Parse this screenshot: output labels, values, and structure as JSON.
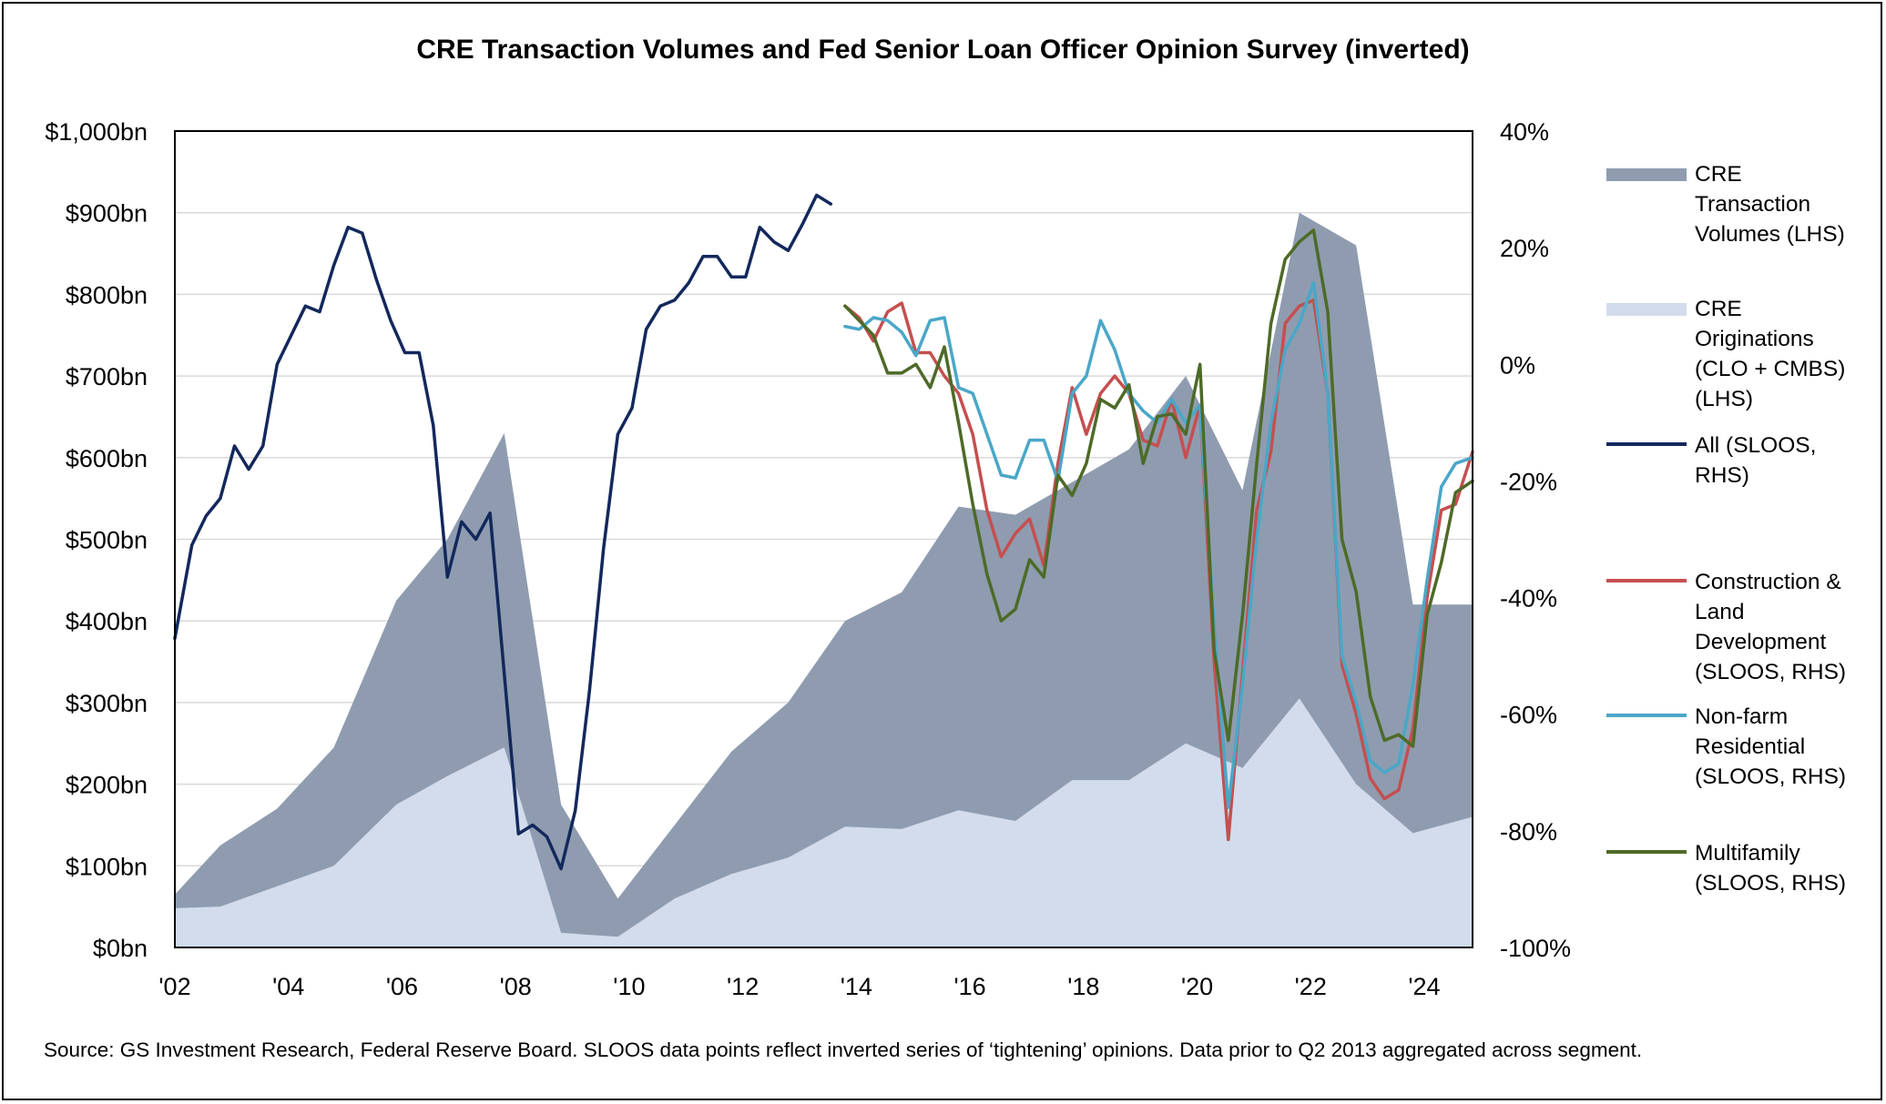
{
  "chart_data": {
    "type": "area+line",
    "title": "CRE Transaction Volumes and Fed Senior Loan Officer Opinion Survey (inverted)",
    "x_ticks": [
      "'02",
      "'04",
      "'06",
      "'08",
      "'10",
      "'12",
      "'14",
      "'16",
      "'18",
      "'20",
      "'22",
      "'24"
    ],
    "x_tick_years": [
      2002,
      2004,
      2006,
      2008,
      2010,
      2012,
      2014,
      2016,
      2018,
      2020,
      2022,
      2024
    ],
    "x_range": [
      2002,
      2024.85
    ],
    "y_left": {
      "range": [
        0,
        1000
      ],
      "ticks": [
        "$0bn",
        "$100bn",
        "$200bn",
        "$300bn",
        "$400bn",
        "$500bn",
        "$600bn",
        "$700bn",
        "$800bn",
        "$900bn",
        "$1,000bn"
      ],
      "tick_values": [
        0,
        100,
        200,
        300,
        400,
        500,
        600,
        700,
        800,
        900,
        1000
      ]
    },
    "y_right": {
      "range": [
        -100,
        40
      ],
      "ticks": [
        "-100%",
        "-80%",
        "-60%",
        "-40%",
        "-20%",
        "0%",
        "20%",
        "40%"
      ],
      "tick_values": [
        -100,
        -80,
        -60,
        -40,
        -20,
        0,
        20,
        40
      ]
    },
    "colors": {
      "cre_volume": "#8f9cb0",
      "cre_originations": "#d2dcec",
      "all": "#13285c",
      "construction": "#c54f4f",
      "nonfarm": "#4aa7c8",
      "multifamily": "#4e6a28",
      "grid": "#d9d9d9"
    },
    "series": [
      {
        "key": "cre_volume",
        "name": "CRE Transaction Volumes (LHS)",
        "kind": "area",
        "axis": "left",
        "x": [
          2002.0,
          2002.8,
          2003.8,
          2004.8,
          2005.9,
          2006.8,
          2007.8,
          2008.8,
          2009.8,
          2010.8,
          2011.8,
          2012.8,
          2013.8,
          2014.8,
          2015.8,
          2016.8,
          2017.8,
          2018.8,
          2019.8,
          2020.8,
          2021.8,
          2022.8,
          2023.8,
          2024.85
        ],
        "values": [
          65,
          125,
          170,
          245,
          425,
          500,
          630,
          175,
          60,
          150,
          240,
          300,
          400,
          435,
          540,
          530,
          570,
          610,
          700,
          560,
          900,
          860,
          420,
          420
        ]
      },
      {
        "key": "cre_originations",
        "name": "CRE Originations (CLO + CMBS) (LHS)",
        "kind": "area",
        "axis": "left",
        "x": [
          2002.0,
          2002.8,
          2003.8,
          2004.8,
          2005.9,
          2006.8,
          2007.8,
          2008.8,
          2009.8,
          2010.8,
          2011.8,
          2012.8,
          2013.8,
          2014.8,
          2015.8,
          2016.8,
          2017.8,
          2018.8,
          2019.8,
          2020.8,
          2021.8,
          2022.8,
          2023.8,
          2024.85
        ],
        "values": [
          48,
          50,
          75,
          100,
          175,
          210,
          245,
          18,
          13,
          60,
          90,
          110,
          148,
          145,
          168,
          155,
          205,
          205,
          250,
          220,
          305,
          200,
          140,
          160
        ]
      },
      {
        "key": "all",
        "name": "All (SLOOS, RHS)",
        "kind": "line",
        "axis": "right",
        "x": [
          2002.0,
          2002.3,
          2002.55,
          2002.8,
          2003.05,
          2003.3,
          2003.55,
          2003.8,
          2004.05,
          2004.3,
          2004.55,
          2004.8,
          2005.05,
          2005.3,
          2005.55,
          2005.8,
          2006.05,
          2006.3,
          2006.55,
          2006.8,
          2007.05,
          2007.3,
          2007.55,
          2007.8,
          2008.05,
          2008.3,
          2008.55,
          2008.8,
          2009.05,
          2009.3,
          2009.55,
          2009.8,
          2010.05,
          2010.3,
          2010.55,
          2010.8,
          2011.05,
          2011.3,
          2011.55,
          2011.8,
          2012.05,
          2012.3,
          2012.55,
          2012.8,
          2013.05,
          2013.3,
          2013.55
        ],
        "values": [
          -47,
          -31,
          -26,
          -23,
          -14,
          -18,
          -14,
          0,
          5,
          10,
          9,
          17,
          23.5,
          22.5,
          14.5,
          7.5,
          2,
          2,
          -10.5,
          -36.5,
          -27,
          -30,
          -25.5,
          -53,
          -80.5,
          -79,
          -81,
          -86.5,
          -76.5,
          -56,
          -31.5,
          -12,
          -7.5,
          6,
          10,
          11,
          14,
          18.5,
          18.5,
          15,
          15,
          23.5,
          21,
          19.5,
          24,
          29,
          27.5
        ]
      },
      {
        "key": "construction",
        "name": "Construction & Land Development (SLOOS, RHS)",
        "kind": "line",
        "axis": "right",
        "x": [
          2013.8,
          2014.05,
          2014.3,
          2014.55,
          2014.8,
          2015.05,
          2015.3,
          2015.55,
          2015.8,
          2016.05,
          2016.3,
          2016.55,
          2016.8,
          2017.05,
          2017.3,
          2017.55,
          2017.8,
          2018.05,
          2018.3,
          2018.55,
          2018.8,
          2019.05,
          2019.3,
          2019.55,
          2019.8,
          2020.05,
          2020.3,
          2020.55,
          2020.8,
          2021.05,
          2021.3,
          2021.55,
          2021.8,
          2022.05,
          2022.3,
          2022.55,
          2022.8,
          2023.05,
          2023.3,
          2023.55,
          2023.8,
          2024.05,
          2024.3,
          2024.55,
          2024.85
        ],
        "values": [
          10,
          8,
          4,
          9,
          10.5,
          2,
          2,
          -2,
          -5,
          -12,
          -25,
          -33,
          -29,
          -26.5,
          -34.5,
          -17,
          -4,
          -12,
          -5,
          -2,
          -5,
          -13,
          -14,
          -6,
          -16,
          -7,
          -51,
          -81.5,
          -53,
          -25,
          -15,
          7,
          10,
          11,
          -5,
          -51.5,
          -60,
          -71,
          -74.5,
          -73,
          -62.5,
          -40,
          -25,
          -24,
          -15
        ]
      },
      {
        "key": "nonfarm",
        "name": "Non-farm Residential (SLOOS, RHS)",
        "kind": "line",
        "axis": "right",
        "x": [
          2013.8,
          2014.05,
          2014.3,
          2014.55,
          2014.8,
          2015.05,
          2015.3,
          2015.55,
          2015.8,
          2016.05,
          2016.3,
          2016.55,
          2016.8,
          2017.05,
          2017.3,
          2017.55,
          2017.8,
          2018.05,
          2018.3,
          2018.55,
          2018.8,
          2019.05,
          2019.3,
          2019.55,
          2019.8,
          2020.05,
          2020.3,
          2020.55,
          2020.8,
          2021.05,
          2021.3,
          2021.55,
          2021.8,
          2022.05,
          2022.3,
          2022.55,
          2022.8,
          2023.05,
          2023.3,
          2023.55,
          2023.8,
          2024.05,
          2024.3,
          2024.55,
          2024.85
        ],
        "values": [
          6.5,
          6,
          8,
          7.5,
          5.5,
          1.5,
          7.5,
          8,
          -4,
          -5,
          -12,
          -19,
          -19.5,
          -13,
          -13,
          -20,
          -5,
          -2,
          7.5,
          2.5,
          -5,
          -8,
          -10,
          -6,
          -10,
          -7,
          -45,
          -76,
          -55,
          -30,
          -10,
          2.5,
          7,
          14,
          -5,
          -50,
          -58,
          -68,
          -70,
          -68.5,
          -55,
          -37,
          -21,
          -17,
          -16
        ]
      },
      {
        "key": "multifamily",
        "name": "Multifamily (SLOOS, RHS)",
        "kind": "line",
        "axis": "right",
        "x": [
          2013.8,
          2014.05,
          2014.3,
          2014.55,
          2014.8,
          2015.05,
          2015.3,
          2015.55,
          2015.8,
          2016.05,
          2016.3,
          2016.55,
          2016.8,
          2017.05,
          2017.3,
          2017.55,
          2017.8,
          2018.05,
          2018.3,
          2018.55,
          2018.8,
          2019.05,
          2019.3,
          2019.55,
          2019.8,
          2020.05,
          2020.3,
          2020.55,
          2020.8,
          2021.05,
          2021.3,
          2021.55,
          2021.8,
          2022.05,
          2022.3,
          2022.55,
          2022.8,
          2023.05,
          2023.3,
          2023.55,
          2023.8,
          2024.05,
          2024.3,
          2024.55,
          2024.85
        ],
        "values": [
          10,
          7.5,
          5,
          -1.5,
          -1.5,
          0,
          -4,
          3,
          -10,
          -24,
          -36,
          -44,
          -42,
          -33.5,
          -36.5,
          -19,
          -22.5,
          -17,
          -6,
          -7.5,
          -3.5,
          -17,
          -9,
          -8.5,
          -12,
          0,
          -49,
          -64.5,
          -43,
          -17,
          7,
          18,
          21,
          23,
          9,
          -30,
          -39,
          -57,
          -64.5,
          -63.5,
          -65.5,
          -43,
          -34,
          -22,
          -20
        ]
      }
    ],
    "legend": [
      {
        "key": "cre_volume",
        "lines": [
          "CRE",
          "Transaction",
          "Volumes (LHS)"
        ]
      },
      {
        "key": "cre_originations",
        "lines": [
          "CRE",
          "Originations",
          "(CLO + CMBS)",
          "(LHS)"
        ]
      },
      {
        "key": "all",
        "lines": [
          "All (SLOOS,",
          "RHS)"
        ]
      },
      {
        "key": "construction",
        "lines": [
          "Construction &",
          "Land",
          "Development",
          "(SLOOS, RHS)"
        ]
      },
      {
        "key": "nonfarm",
        "lines": [
          "Non-farm",
          "Residential",
          "(SLOOS, RHS)"
        ]
      },
      {
        "key": "multifamily",
        "lines": [
          "Multifamily",
          "(SLOOS, RHS)"
        ]
      }
    ],
    "legend_placement": "right",
    "grid": true,
    "source_note": "Source: GS Investment Research, Federal Reserve Board. SLOOS data points reflect inverted series of ‘tightening’ opinions. Data prior to Q2 2013 aggregated across segment."
  }
}
